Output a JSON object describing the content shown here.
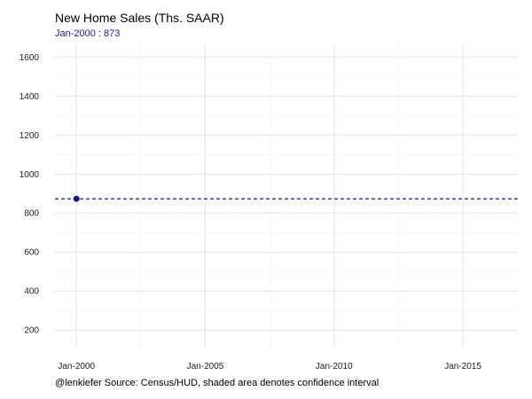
{
  "chart_data": {
    "type": "line",
    "title": "New Home Sales (Ths. SAAR)",
    "subtitle": "Jan-2000 : 873",
    "caption": "@lenkiefer Source: Census/HUD, shaded area denotes confidence interval",
    "xlabel": "",
    "ylabel": "",
    "x_ticks": [
      {
        "date": "2000-01",
        "label": "Jan-2000"
      },
      {
        "date": "2005-01",
        "label": "Jan-2005"
      },
      {
        "date": "2010-01",
        "label": "Jan-2010"
      },
      {
        "date": "2015-01",
        "label": "Jan-2015"
      }
    ],
    "xlim": [
      "1999-03",
      "2017-03"
    ],
    "y_ticks": [
      200,
      400,
      600,
      800,
      1000,
      1200,
      1400,
      1600
    ],
    "ylim": [
      110,
      1665
    ],
    "grid": true,
    "series": [
      {
        "points": [
          {
            "x": "2000-01",
            "y": 873
          }
        ]
      }
    ],
    "reference_line": {
      "y": 873,
      "style": "dashed"
    },
    "colors": {
      "series": "#1a1a80",
      "subtitle": "#1a1aa6",
      "reference_line": "#00006b",
      "grid_major": "#e6e6e6",
      "grid_minor": "#f3f3f3"
    }
  }
}
